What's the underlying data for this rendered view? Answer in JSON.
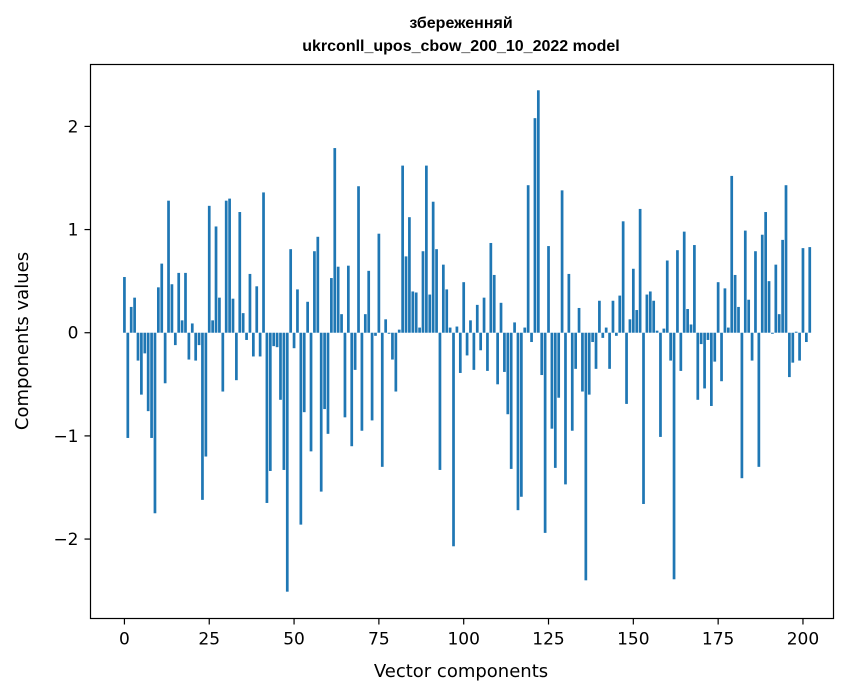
{
  "chart_data": {
    "type": "bar",
    "title_line1": "збереженняй",
    "title_line2": "ukrconll_upos_cbow_200_10_2022 model",
    "xlabel": "Vector components",
    "ylabel": "Components values",
    "xlim": [
      -10,
      209
    ],
    "ylim": [
      -2.77,
      2.6
    ],
    "xticks": [
      0,
      25,
      50,
      75,
      100,
      125,
      150,
      175,
      200
    ],
    "yticks": [
      -2,
      -1,
      0,
      1,
      2
    ],
    "ytick_labels": [
      "−2",
      "−1",
      "0",
      "1",
      "2"
    ],
    "bar_color": "#1f77b4",
    "values": [
      0.54,
      -1.02,
      0.25,
      0.34,
      -0.27,
      -0.6,
      -0.2,
      -0.76,
      -1.02,
      -1.75,
      0.44,
      0.67,
      -0.49,
      1.28,
      0.47,
      -0.12,
      0.58,
      0.12,
      0.58,
      -0.26,
      0.09,
      -0.27,
      -0.12,
      -1.62,
      -1.2,
      1.23,
      0.12,
      1.03,
      0.34,
      -0.57,
      1.28,
      1.3,
      0.33,
      -0.46,
      1.17,
      0.19,
      -0.07,
      0.57,
      -0.23,
      0.45,
      -0.23,
      1.36,
      -1.65,
      -1.34,
      -0.13,
      -0.14,
      -0.65,
      -1.33,
      -2.51,
      0.81,
      -0.15,
      0.42,
      -1.86,
      -0.77,
      0.3,
      -1.15,
      0.79,
      0.93,
      -1.54,
      -0.74,
      -0.98,
      0.53,
      1.79,
      0.64,
      0.18,
      -0.82,
      0.65,
      -1.1,
      -0.36,
      1.42,
      -0.95,
      0.18,
      0.6,
      -0.85,
      -0.03,
      0.96,
      -1.3,
      0.13,
      -0.01,
      -0.26,
      -0.57,
      0.03,
      1.62,
      0.74,
      1.12,
      0.4,
      0.39,
      0.05,
      0.79,
      1.62,
      0.37,
      1.27,
      0.81,
      -1.33,
      0.66,
      0.42,
      0.05,
      -2.07,
      0.06,
      -0.39,
      0.49,
      -0.22,
      0.12,
      -0.36,
      0.27,
      -0.17,
      0.34,
      -0.37,
      0.87,
      0.56,
      -0.5,
      0.29,
      -0.38,
      -0.79,
      -1.32,
      0.1,
      -1.72,
      -1.59,
      0.05,
      1.43,
      -0.09,
      2.08,
      2.35,
      -0.41,
      -1.94,
      0.84,
      -0.93,
      -1.31,
      -0.63,
      1.38,
      -1.47,
      0.57,
      -0.95,
      -0.35,
      0.24,
      -0.57,
      -2.4,
      -0.6,
      -0.09,
      -0.35,
      0.31,
      -0.05,
      0.05,
      -0.35,
      0.31,
      -0.03,
      0.36,
      1.08,
      -0.69,
      0.13,
      0.62,
      0.22,
      1.2,
      -1.66,
      0.37,
      0.4,
      0.31,
      0.02,
      -1.01,
      0.04,
      0.7,
      -0.27,
      -2.39,
      0.8,
      -0.37,
      0.98,
      0.23,
      0.08,
      0.85,
      -0.65,
      -0.11,
      -0.54,
      -0.07,
      -0.71,
      -0.28,
      0.49,
      -0.47,
      0.43,
      0.05,
      1.52,
      0.56,
      0.25,
      -1.41,
      0.99,
      0.32,
      -0.27,
      0.79,
      -1.3,
      0.95,
      1.17,
      0.5,
      -0.01,
      0.66,
      0.18,
      0.9,
      1.43,
      -0.43,
      -0.29,
      0.01,
      -0.27,
      0.82,
      -0.09,
      0.83
    ]
  }
}
